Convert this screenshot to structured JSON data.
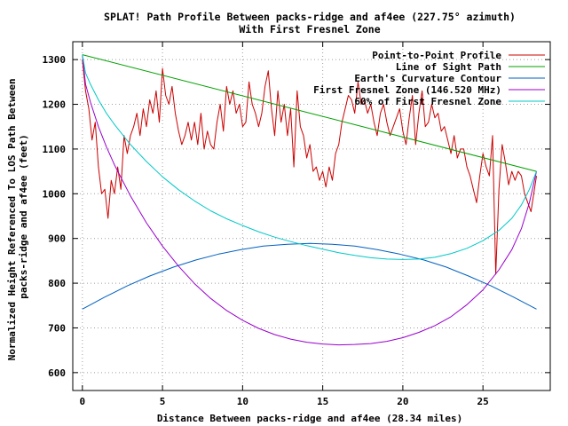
{
  "chart_data": {
    "type": "line",
    "title": "SPLAT! Path Profile Between packs-ridge and af4ee (227.75° azimuth)",
    "subtitle": "With First Fresnel Zone",
    "xlabel": "Distance Between packs-ridge and af4ee (28.34 miles)",
    "ylabel": [
      "Normalized Height Referenced To LOS Path Between",
      "packs-ridge and af4ee (feet)"
    ],
    "xlim": [
      -0.6,
      29.2
    ],
    "ylim": [
      560,
      1340
    ],
    "x_ticks": [
      "0",
      "5",
      "10",
      "15",
      "20",
      "25"
    ],
    "y_ticks": [
      "600",
      "700",
      "800",
      "900",
      "1000",
      "1100",
      "1200",
      "1300"
    ],
    "grid": true,
    "legend_position": "top-right",
    "series": [
      {
        "name": "Point-to-Point Profile",
        "color": "#cc0000",
        "x": [
          0,
          0.2,
          0.4,
          0.6,
          0.8,
          1.0,
          1.2,
          1.4,
          1.6,
          1.8,
          2.0,
          2.2,
          2.4,
          2.6,
          2.8,
          3.0,
          3.2,
          3.4,
          3.6,
          3.8,
          4.0,
          4.2,
          4.4,
          4.6,
          4.8,
          5.0,
          5.2,
          5.4,
          5.6,
          5.8,
          6.0,
          6.2,
          6.4,
          6.6,
          6.8,
          7.0,
          7.2,
          7.4,
          7.6,
          7.8,
          8.0,
          8.2,
          8.4,
          8.6,
          8.8,
          9.0,
          9.2,
          9.4,
          9.6,
          9.8,
          10.0,
          10.2,
          10.4,
          10.6,
          10.8,
          11.0,
          11.2,
          11.4,
          11.6,
          11.8,
          12.0,
          12.2,
          12.4,
          12.6,
          12.8,
          13.0,
          13.2,
          13.4,
          13.6,
          13.8,
          14.0,
          14.2,
          14.4,
          14.6,
          14.8,
          15.0,
          15.2,
          15.4,
          15.6,
          15.8,
          16.0,
          16.2,
          16.4,
          16.6,
          16.8,
          17.0,
          17.2,
          17.4,
          17.6,
          17.8,
          18.0,
          18.2,
          18.4,
          18.6,
          18.8,
          19.0,
          19.2,
          19.4,
          19.6,
          19.8,
          20.0,
          20.2,
          20.4,
          20.6,
          20.8,
          21.0,
          21.2,
          21.4,
          21.6,
          21.8,
          22.0,
          22.2,
          22.4,
          22.6,
          22.8,
          23.0,
          23.2,
          23.4,
          23.6,
          23.8,
          24.0,
          24.2,
          24.4,
          24.6,
          24.8,
          25.0,
          25.2,
          25.4,
          25.6,
          25.8,
          26.0,
          26.2,
          26.4,
          26.6,
          26.8,
          27.0,
          27.2,
          27.4,
          27.6,
          27.8,
          28.0,
          28.34
        ],
        "y": [
          1300,
          1230,
          1190,
          1120,
          1160,
          1060,
          1000,
          1010,
          945,
          1030,
          1000,
          1060,
          1010,
          1130,
          1090,
          1130,
          1150,
          1180,
          1130,
          1190,
          1150,
          1210,
          1180,
          1230,
          1160,
          1280,
          1220,
          1200,
          1240,
          1180,
          1140,
          1110,
          1130,
          1160,
          1120,
          1160,
          1110,
          1180,
          1100,
          1140,
          1110,
          1100,
          1160,
          1200,
          1140,
          1240,
          1200,
          1230,
          1180,
          1200,
          1150,
          1160,
          1250,
          1200,
          1180,
          1150,
          1180,
          1240,
          1275,
          1190,
          1130,
          1230,
          1160,
          1200,
          1130,
          1190,
          1060,
          1230,
          1150,
          1130,
          1080,
          1110,
          1050,
          1060,
          1030,
          1050,
          1015,
          1060,
          1030,
          1090,
          1110,
          1160,
          1190,
          1220,
          1210,
          1180,
          1250,
          1200,
          1210,
          1180,
          1200,
          1160,
          1130,
          1180,
          1200,
          1160,
          1130,
          1150,
          1170,
          1190,
          1140,
          1110,
          1170,
          1220,
          1110,
          1180,
          1230,
          1150,
          1160,
          1200,
          1170,
          1180,
          1140,
          1150,
          1120,
          1090,
          1130,
          1080,
          1100,
          1100,
          1060,
          1040,
          1010,
          980,
          1040,
          1090,
          1060,
          1040,
          1130,
          820,
          1010,
          1110,
          1070,
          1020,
          1050,
          1030,
          1050,
          1040,
          1000,
          980,
          960,
          1040
        ]
      },
      {
        "name": "Line of Sight Path",
        "color": "#00a000",
        "x": [
          0,
          28.34
        ],
        "y": [
          1311,
          1050
        ]
      },
      {
        "name": "Earth's Curvature Contour",
        "color": "#0060c0",
        "x": [
          0,
          1.4,
          2.8,
          4.2,
          5.7,
          7.1,
          8.5,
          9.9,
          11.3,
          12.8,
          14.2,
          15.6,
          17.0,
          18.4,
          19.8,
          21.3,
          22.7,
          24.1,
          25.5,
          26.9,
          28.34
        ],
        "y": [
          742,
          769,
          794,
          816,
          836,
          852,
          865,
          875,
          883,
          887,
          889,
          887,
          883,
          875,
          865,
          852,
          836,
          816,
          794,
          769,
          742
        ]
      },
      {
        "name": "First Fresnel Zone (146.520 MHz)",
        "color": "#9900cc",
        "x": [
          0,
          0.2,
          0.5,
          1.0,
          1.5,
          2.0,
          3.0,
          4.0,
          5.0,
          6.0,
          7.0,
          8.0,
          9.0,
          10.0,
          11.0,
          12.0,
          13.0,
          14.0,
          15.0,
          16.0,
          17.0,
          18.0,
          19.0,
          20.0,
          21.0,
          22.0,
          23.0,
          24.0,
          25.0,
          26.0,
          26.8,
          27.4,
          27.9,
          28.34
        ],
        "y": [
          1311,
          1245,
          1205,
          1150,
          1105,
          1065,
          995,
          935,
          883,
          838,
          799,
          766,
          739,
          717,
          699,
          685,
          675,
          668,
          664,
          662,
          663,
          665,
          670,
          678,
          690,
          705,
          725,
          752,
          785,
          830,
          875,
          922,
          980,
          1050
        ]
      },
      {
        "name": "60% of First Fresnel Zone",
        "color": "#00c8c8",
        "x": [
          0,
          0.2,
          0.5,
          1.0,
          1.5,
          2.0,
          3.0,
          4.0,
          5.0,
          6.0,
          7.0,
          8.0,
          9.0,
          10.0,
          11.0,
          12.0,
          13.0,
          14.0,
          15.0,
          16.0,
          17.0,
          18.0,
          19.0,
          20.0,
          21.0,
          22.0,
          23.0,
          24.0,
          25.0,
          26.0,
          26.8,
          27.4,
          27.9,
          28.34
        ],
        "y": [
          1311,
          1270,
          1245,
          1210,
          1180,
          1155,
          1110,
          1072,
          1038,
          1009,
          984,
          962,
          944,
          929,
          915,
          903,
          893,
          884,
          876,
          868,
          862,
          857,
          854,
          853,
          854,
          858,
          866,
          878,
          895,
          918,
          945,
          975,
          1010,
          1050
        ]
      }
    ]
  }
}
